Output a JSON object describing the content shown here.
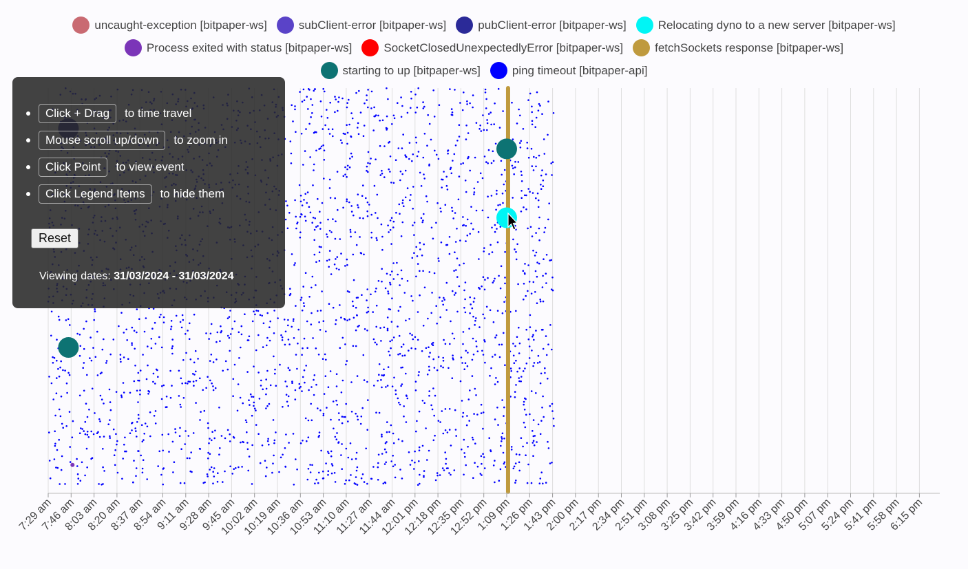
{
  "legend": {
    "rows": [
      [
        {
          "label": "uncaught-exception [bitpaper-ws]",
          "color": "#c96a72"
        },
        {
          "label": "subClient-error [bitpaper-ws]",
          "color": "#5a43c8"
        },
        {
          "label": "pubClient-error [bitpaper-ws]",
          "color": "#2b2a98"
        },
        {
          "label": "Relocating dyno to a new server [bitpaper-ws]",
          "color": "#00f5f5"
        }
      ],
      [
        {
          "label": "Process exited with status [bitpaper-ws]",
          "color": "#7b35b8"
        },
        {
          "label": "SocketClosedUnexpectedlyError [bitpaper-ws]",
          "color": "#ff0000"
        },
        {
          "label": "fetchSockets response [bitpaper-ws]",
          "color": "#bf9a3e"
        }
      ],
      [
        {
          "label": "starting to up [bitpaper-ws]",
          "color": "#0d7373"
        },
        {
          "label": "ping timeout [bitpaper-api]",
          "color": "#0000ff"
        }
      ]
    ]
  },
  "help": {
    "items": [
      {
        "key": "Click + Drag",
        "text": "to time travel"
      },
      {
        "key": "Mouse scroll up/down",
        "text": "to zoom in"
      },
      {
        "key": "Click Point",
        "text": "to view event"
      },
      {
        "key": "Click Legend Items",
        "text": "to hide them"
      }
    ],
    "reset_label": "Reset",
    "viewing_prefix": "Viewing dates: ",
    "viewing_range": "31/03/2024 - 31/03/2024"
  },
  "chart_data": {
    "type": "scatter",
    "x_tick_labels": [
      "7:29 am",
      "7:46 am",
      "8:03 am",
      "8:20 am",
      "8:37 am",
      "8:54 am",
      "9:11 am",
      "9:28 am",
      "9:45 am",
      "10:02 am",
      "10:19 am",
      "10:36 am",
      "10:53 am",
      "11:10 am",
      "11:27 am",
      "11:44 am",
      "12:01 pm",
      "12:18 pm",
      "12:35 pm",
      "12:52 pm",
      "1:09 pm",
      "1:26 pm",
      "1:43 pm",
      "2:00 pm",
      "2:17 pm",
      "2:34 pm",
      "2:51 pm",
      "3:08 pm",
      "3:25 pm",
      "3:42 pm",
      "3:59 pm",
      "4:16 pm",
      "4:33 pm",
      "4:50 pm",
      "5:07 pm",
      "5:24 pm",
      "5:41 pm",
      "5:58 pm",
      "6:15 pm"
    ],
    "x_range": [
      "7:29 am",
      "6:30 pm"
    ],
    "grid": true,
    "legend_placement": "top-center",
    "dense_series": {
      "name": "ping timeout [bitpaper-api]",
      "x_range": [
        "7:29 am",
        "1:44 pm"
      ],
      "approx_count": 2600
    },
    "fetch_sockets_band_time": "1:10 pm",
    "large_points": [
      {
        "series": "starting to up [bitpaper-ws]",
        "time": "1:09 pm",
        "y": 0.85
      },
      {
        "series": "starting to up [bitpaper-ws]",
        "time": "7:44 am",
        "y": 0.36
      },
      {
        "series": "Relocating dyno to a new server [bitpaper-ws]",
        "time": "1:09 pm",
        "y": 0.68
      },
      {
        "series": "pubClient-error [bitpaper-ws]",
        "time": "7:44 am",
        "y": 0.9
      }
    ],
    "small_points": [
      {
        "series": "Process exited with status [bitpaper-ws]",
        "time": "7:47 am",
        "y": 0.07
      }
    ]
  }
}
